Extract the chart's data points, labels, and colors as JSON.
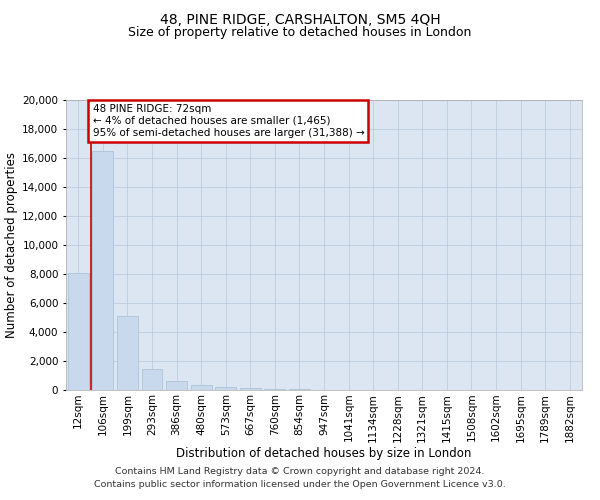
{
  "title": "48, PINE RIDGE, CARSHALTON, SM5 4QH",
  "subtitle": "Size of property relative to detached houses in London",
  "xlabel": "Distribution of detached houses by size in London",
  "ylabel": "Number of detached properties",
  "categories": [
    "12sqm",
    "106sqm",
    "199sqm",
    "293sqm",
    "386sqm",
    "480sqm",
    "573sqm",
    "667sqm",
    "760sqm",
    "854sqm",
    "947sqm",
    "1041sqm",
    "1134sqm",
    "1228sqm",
    "1321sqm",
    "1415sqm",
    "1508sqm",
    "1602sqm",
    "1695sqm",
    "1789sqm",
    "1882sqm"
  ],
  "values": [
    8050,
    16500,
    5100,
    1480,
    600,
    330,
    190,
    130,
    85,
    60,
    25,
    10,
    5,
    3,
    2,
    1,
    0,
    0,
    0,
    0,
    0
  ],
  "bar_color": "#c9d9ed",
  "bar_edge_color": "#a8bdd0",
  "annotation_text": "48 PINE RIDGE: 72sqm\n← 4% of detached houses are smaller (1,465)\n95% of semi-detached houses are larger (31,388) →",
  "annotation_box_color": "#ffffff",
  "annotation_box_edge_color": "#cc0000",
  "property_line_color": "#cc0000",
  "property_line_x": 0.5,
  "ylim": [
    0,
    20000
  ],
  "yticks": [
    0,
    2000,
    4000,
    6000,
    8000,
    10000,
    12000,
    14000,
    16000,
    18000,
    20000
  ],
  "grid_color": "#b8c8dc",
  "background_color": "#dce6f2",
  "footnote1": "Contains HM Land Registry data © Crown copyright and database right 2024.",
  "footnote2": "Contains public sector information licensed under the Open Government Licence v3.0.",
  "title_fontsize": 10,
  "subtitle_fontsize": 9,
  "axis_label_fontsize": 8.5,
  "tick_fontsize": 7.5,
  "annotation_fontsize": 7.5,
  "footnote_fontsize": 6.8
}
